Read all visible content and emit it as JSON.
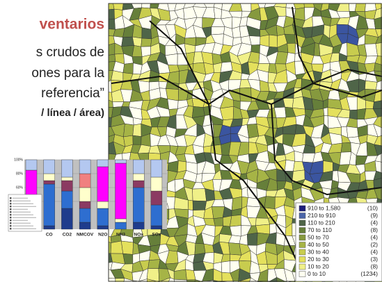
{
  "slide": {
    "title_lines": [
      "ventarios",
      "s crudos de",
      "ones para la",
      "referencia”",
      "/ línea / área)"
    ]
  },
  "map": {
    "legend": [
      {
        "range": "910 to 1,580",
        "count": "(10)",
        "color": "#1c1c7a"
      },
      {
        "range": "210 to 910",
        "count": "(9)",
        "color": "#4a64a8"
      },
      {
        "range": "110 to 210",
        "count": "(4)",
        "color": "#4f6548"
      },
      {
        "range": "70 to 110",
        "count": "(8)",
        "color": "#667f3a"
      },
      {
        "range": "50 to 70",
        "count": "(4)",
        "color": "#86993e"
      },
      {
        "range": "40 to 50",
        "count": "(2)",
        "color": "#a6b446"
      },
      {
        "range": "30 to 40",
        "count": "(4)",
        "color": "#c8cc4e"
      },
      {
        "range": "20 to 30",
        "count": "(3)",
        "color": "#e4e05c"
      },
      {
        "range": "10 to 20",
        "count": "(8)",
        "color": "#f0f088"
      },
      {
        "range": "0 to 10",
        "count": "(1234)",
        "color": "#fffff0"
      }
    ]
  },
  "chart_data": {
    "type": "bar",
    "stacked": true,
    "categories": [
      null,
      "CO",
      "CO2",
      "NMCOV",
      "N2O",
      "NH3",
      "NOx",
      "SOx"
    ],
    "series": [
      {
        "color": "#1f3c8c",
        "values": [
          10,
          5,
          30,
          10,
          5,
          0,
          10,
          5
        ]
      },
      {
        "color": "#2e6ed0",
        "values": [
          10,
          60,
          25,
          20,
          25,
          10,
          50,
          30
        ]
      },
      {
        "color": "#8b3a62",
        "values": [
          15,
          5,
          15,
          10,
          0,
          0,
          10,
          20
        ]
      },
      {
        "color": "#ffffcc",
        "values": [
          10,
          10,
          5,
          20,
          10,
          5,
          10,
          20
        ]
      },
      {
        "color": "#f08080",
        "values": [
          0,
          0,
          0,
          20,
          0,
          0,
          0,
          0
        ]
      },
      {
        "color": "#ff00ff",
        "values": [
          40,
          0,
          0,
          0,
          50,
          80,
          0,
          0
        ]
      },
      {
        "color": "#b4c8f0",
        "values": [
          15,
          20,
          25,
          20,
          10,
          5,
          20,
          25
        ]
      }
    ],
    "ylim": [
      0,
      100
    ],
    "yticks": [
      {
        "value": 40,
        "label": "40%"
      },
      {
        "value": 60,
        "label": "60%"
      },
      {
        "value": 80,
        "label": "80%"
      },
      {
        "value": 100,
        "label": "100%"
      }
    ]
  }
}
